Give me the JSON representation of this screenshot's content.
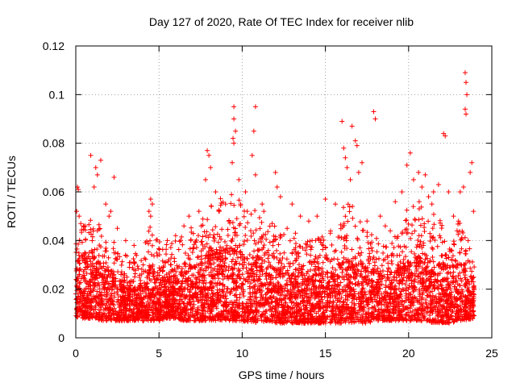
{
  "chart_data": {
    "type": "scatter",
    "title": "Day 127 of 2020, Rate Of TEC Index for receiver nlib",
    "xlabel": "GPS time / hours",
    "ylabel": "ROTI / TECUs",
    "xlim": [
      0,
      25
    ],
    "ylim": [
      0,
      0.12
    ],
    "x_ticks": [
      0,
      5,
      10,
      15,
      20,
      25
    ],
    "x_tick_labels": [
      "0",
      "5",
      "10",
      "15",
      "20",
      "25"
    ],
    "y_ticks": [
      0,
      0.02,
      0.04,
      0.06,
      0.08,
      0.1,
      0.12
    ],
    "y_tick_labels": [
      "0",
      "0.02",
      "0.04",
      "0.06",
      "0.08",
      "0.1",
      "0.12"
    ],
    "grid": true,
    "marker": "+",
    "series_color": "#ff0000",
    "series": [
      {
        "name": "ROTI",
        "points": [
          [
            0.1,
            0.062
          ],
          [
            0.15,
            0.061
          ],
          [
            0.05,
            0.052
          ],
          [
            0.2,
            0.05
          ],
          [
            0.3,
            0.047
          ],
          [
            0.9,
            0.075
          ],
          [
            1.2,
            0.07
          ],
          [
            1.3,
            0.067
          ],
          [
            1.5,
            0.073
          ],
          [
            1.1,
            0.062
          ],
          [
            1.8,
            0.055
          ],
          [
            2.0,
            0.05
          ],
          [
            2.3,
            0.066
          ],
          [
            2.1,
            0.052
          ],
          [
            4.5,
            0.057
          ],
          [
            4.6,
            0.055
          ],
          [
            4.4,
            0.052
          ],
          [
            4.5,
            0.05
          ],
          [
            6.5,
            0.046
          ],
          [
            6.8,
            0.05
          ],
          [
            7.4,
            0.052
          ],
          [
            7.9,
            0.077
          ],
          [
            8.0,
            0.075
          ],
          [
            8.1,
            0.07
          ],
          [
            7.8,
            0.065
          ],
          [
            8.4,
            0.06
          ],
          [
            9.5,
            0.095
          ],
          [
            9.5,
            0.09
          ],
          [
            9.6,
            0.085
          ],
          [
            9.45,
            0.082
          ],
          [
            9.5,
            0.08
          ],
          [
            9.4,
            0.072
          ],
          [
            9.8,
            0.065
          ],
          [
            10.8,
            0.095
          ],
          [
            10.7,
            0.085
          ],
          [
            10.6,
            0.075
          ],
          [
            10.8,
            0.067
          ],
          [
            10.2,
            0.06
          ],
          [
            9.9,
            0.055
          ],
          [
            11.2,
            0.055
          ],
          [
            11.3,
            0.052
          ],
          [
            12.0,
            0.068
          ],
          [
            12.1,
            0.062
          ],
          [
            12.3,
            0.058
          ],
          [
            13.0,
            0.055
          ],
          [
            13.5,
            0.05
          ],
          [
            14.0,
            0.048
          ],
          [
            14.5,
            0.05
          ],
          [
            15.0,
            0.057
          ],
          [
            15.6,
            0.055
          ],
          [
            16.0,
            0.089
          ],
          [
            16.1,
            0.078
          ],
          [
            16.2,
            0.074
          ],
          [
            16.3,
            0.07
          ],
          [
            16.5,
            0.065
          ],
          [
            16.8,
            0.081
          ],
          [
            16.9,
            0.079
          ],
          [
            17.0,
            0.068
          ],
          [
            17.2,
            0.072
          ],
          [
            16.6,
            0.087
          ],
          [
            17.9,
            0.093
          ],
          [
            18.0,
            0.09
          ],
          [
            18.3,
            0.05
          ],
          [
            18.6,
            0.046
          ],
          [
            19.2,
            0.056
          ],
          [
            19.6,
            0.06
          ],
          [
            19.9,
            0.071
          ],
          [
            20.1,
            0.076
          ],
          [
            20.3,
            0.065
          ],
          [
            20.6,
            0.068
          ],
          [
            20.8,
            0.062
          ],
          [
            21.0,
            0.067
          ],
          [
            21.2,
            0.058
          ],
          [
            21.4,
            0.055
          ],
          [
            21.5,
            0.06
          ],
          [
            21.8,
            0.063
          ],
          [
            22.1,
            0.084
          ],
          [
            22.2,
            0.083
          ],
          [
            22.4,
            0.06
          ],
          [
            23.1,
            0.06
          ],
          [
            23.3,
            0.062
          ],
          [
            23.4,
            0.109
          ],
          [
            23.45,
            0.105
          ],
          [
            23.5,
            0.1
          ],
          [
            23.4,
            0.094
          ],
          [
            23.45,
            0.092
          ],
          [
            23.7,
            0.068
          ],
          [
            23.8,
            0.072
          ],
          [
            23.9,
            0.052
          ],
          [
            2.5,
            0.045
          ],
          [
            3.0,
            0.04
          ],
          [
            3.5,
            0.038
          ],
          [
            5.5,
            0.04
          ],
          [
            6.0,
            0.042
          ],
          [
            8.6,
            0.052
          ],
          [
            9.0,
            0.055
          ],
          [
            9.2,
            0.048
          ],
          [
            10.3,
            0.052
          ],
          [
            11.8,
            0.047
          ],
          [
            12.7,
            0.045
          ],
          [
            13.2,
            0.043
          ],
          [
            14.2,
            0.04
          ],
          [
            15.3,
            0.043
          ],
          [
            17.5,
            0.048
          ],
          [
            18.9,
            0.044
          ],
          [
            19.3,
            0.041
          ],
          [
            22.7,
            0.05
          ],
          [
            23.0,
            0.048
          ]
        ],
        "density_profile": {
          "step_hours": 0.5,
          "hours": [
            0,
            0.5,
            1,
            1.5,
            2,
            2.5,
            3,
            3.5,
            4,
            4.5,
            5,
            5.5,
            6,
            6.5,
            7,
            7.5,
            8,
            8.5,
            9,
            9.5,
            10,
            10.5,
            11,
            11.5,
            12,
            12.5,
            13,
            13.5,
            14,
            14.5,
            15,
            15.5,
            16,
            16.5,
            17,
            17.5,
            18,
            18.5,
            19,
            19.5,
            20,
            20.5,
            21,
            21.5,
            22,
            22.5,
            23,
            23.5,
            24
          ],
          "typical_floor": [
            0.008,
            0.008,
            0.008,
            0.007,
            0.007,
            0.007,
            0.007,
            0.007,
            0.007,
            0.007,
            0.007,
            0.008,
            0.008,
            0.007,
            0.007,
            0.007,
            0.007,
            0.007,
            0.007,
            0.007,
            0.007,
            0.006,
            0.006,
            0.007,
            0.006,
            0.006,
            0.006,
            0.006,
            0.006,
            0.006,
            0.006,
            0.006,
            0.006,
            0.006,
            0.006,
            0.006,
            0.007,
            0.007,
            0.007,
            0.007,
            0.007,
            0.007,
            0.007,
            0.006,
            0.006,
            0.006,
            0.007,
            0.007,
            0.008
          ],
          "dense_upper": [
            0.028,
            0.032,
            0.033,
            0.03,
            0.027,
            0.024,
            0.022,
            0.021,
            0.022,
            0.027,
            0.024,
            0.023,
            0.025,
            0.027,
            0.029,
            0.03,
            0.034,
            0.035,
            0.035,
            0.036,
            0.034,
            0.033,
            0.031,
            0.029,
            0.028,
            0.027,
            0.026,
            0.026,
            0.025,
            0.026,
            0.026,
            0.027,
            0.03,
            0.032,
            0.032,
            0.029,
            0.027,
            0.026,
            0.026,
            0.028,
            0.031,
            0.033,
            0.033,
            0.031,
            0.03,
            0.029,
            0.03,
            0.027,
            0.02
          ],
          "sparse_upper": [
            0.045,
            0.048,
            0.05,
            0.046,
            0.042,
            0.038,
            0.036,
            0.035,
            0.036,
            0.048,
            0.04,
            0.039,
            0.04,
            0.044,
            0.046,
            0.048,
            0.056,
            0.058,
            0.06,
            0.062,
            0.058,
            0.056,
            0.05,
            0.046,
            0.048,
            0.044,
            0.042,
            0.041,
            0.04,
            0.042,
            0.044,
            0.045,
            0.055,
            0.058,
            0.055,
            0.046,
            0.042,
            0.041,
            0.04,
            0.045,
            0.055,
            0.058,
            0.056,
            0.052,
            0.05,
            0.046,
            0.05,
            0.045,
            0.03
          ]
        }
      }
    ]
  }
}
